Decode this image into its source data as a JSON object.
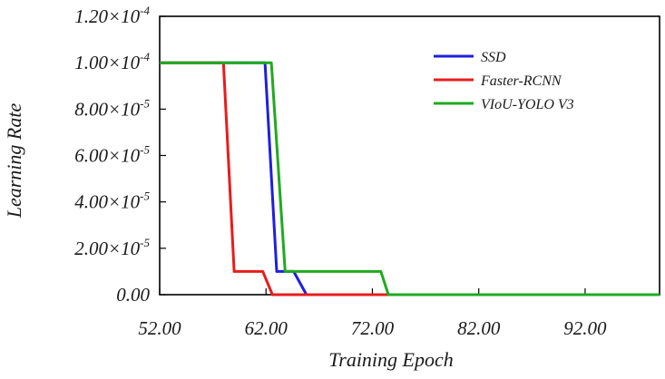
{
  "chart_data": {
    "type": "line",
    "xlabel": "Training Epoch",
    "ylabel": "Learning Rate",
    "xlim": [
      52,
      99
    ],
    "ylim": [
      0,
      0.00012
    ],
    "grid": false,
    "legend_position": "top-right",
    "x_ticks": [
      {
        "value": 52,
        "label": "52.00"
      },
      {
        "value": 62,
        "label": "62.00"
      },
      {
        "value": 72,
        "label": "72.00"
      },
      {
        "value": 82,
        "label": "82.00"
      },
      {
        "value": 92,
        "label": "92.00"
      }
    ],
    "y_ticks": [
      {
        "value": 0,
        "label": "0.00",
        "exp": ""
      },
      {
        "value": 2e-05,
        "label": "2.00×10",
        "exp": "-5"
      },
      {
        "value": 4e-05,
        "label": "4.00×10",
        "exp": "-5"
      },
      {
        "value": 6e-05,
        "label": "6.00×10",
        "exp": "-5"
      },
      {
        "value": 8e-05,
        "label": "8.00×10",
        "exp": "-5"
      },
      {
        "value": 0.0001,
        "label": "1.00×10",
        "exp": "-4"
      },
      {
        "value": 0.00012,
        "label": "1.20×10",
        "exp": "-4"
      }
    ],
    "series": [
      {
        "name": "SSD",
        "color": "#1f1fe0",
        "x": [
          52,
          61.9,
          63.0,
          64.6,
          65.8,
          99
        ],
        "y": [
          0.0001,
          0.0001,
          1e-05,
          1e-05,
          0.0,
          0.0
        ]
      },
      {
        "name": "Faster-RCNN",
        "color": "#e81c1c",
        "x": [
          52,
          58.0,
          59.0,
          61.7,
          62.6,
          99
        ],
        "y": [
          0.0001,
          0.0001,
          1e-05,
          1e-05,
          0.0,
          0.0
        ]
      },
      {
        "name": "VIoU-YOLO V3",
        "color": "#1faa1f",
        "x": [
          52,
          62.5,
          63.8,
          72.8,
          73.5,
          99
        ],
        "y": [
          0.0001,
          0.0001,
          1e-05,
          1e-05,
          0.0,
          0.0
        ]
      }
    ]
  }
}
